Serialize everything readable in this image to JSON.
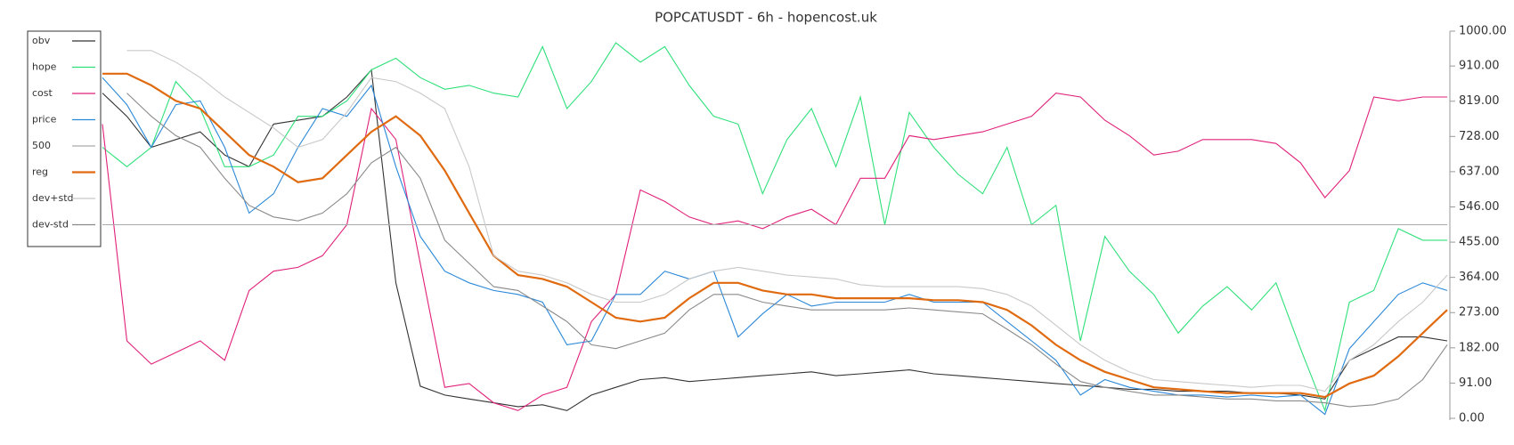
{
  "chart_data": {
    "type": "line",
    "title": "POPCATUSDT - 6h - hopencost.uk",
    "ylim": [
      0,
      1000
    ],
    "yticks": [
      {
        "value": 0,
        "label": "0.00"
      },
      {
        "value": 91,
        "label": "91.00"
      },
      {
        "value": 182,
        "label": "182.00"
      },
      {
        "value": 273,
        "label": "273.00"
      },
      {
        "value": 364,
        "label": "364.00"
      },
      {
        "value": 455,
        "label": "455.00"
      },
      {
        "value": 546,
        "label": "546.00"
      },
      {
        "value": 637,
        "label": "637.00"
      },
      {
        "value": 728,
        "label": "728.00"
      },
      {
        "value": 819,
        "label": "819.00"
      },
      {
        "value": 910,
        "label": "910.00"
      },
      {
        "value": 1000,
        "label": "1000.00"
      }
    ],
    "legend": "upper left",
    "series": [
      {
        "name": "obv",
        "color": "#333333",
        "values": [
          840,
          780,
          700,
          720,
          740,
          680,
          650,
          760,
          770,
          780,
          830,
          900,
          350,
          83,
          60,
          50,
          40,
          30,
          35,
          20,
          60,
          80,
          100,
          105,
          95,
          100,
          105,
          110,
          115,
          120,
          110,
          115,
          120,
          125,
          115,
          110,
          105,
          100,
          95,
          90,
          85,
          80,
          75,
          75,
          70,
          70,
          70,
          65,
          65,
          60,
          50,
          150,
          180,
          210,
          210,
          200
        ]
      },
      {
        "name": "hope",
        "color": "#2ee07a",
        "values": [
          700,
          650,
          700,
          870,
          800,
          650,
          650,
          680,
          780,
          780,
          820,
          900,
          930,
          880,
          850,
          860,
          840,
          830,
          960,
          800,
          870,
          970,
          920,
          960,
          860,
          780,
          760,
          580,
          720,
          800,
          650,
          830,
          500,
          790,
          700,
          630,
          580,
          700,
          500,
          550,
          200,
          470,
          380,
          320,
          220,
          290,
          340,
          280,
          350,
          180,
          20,
          300,
          330,
          490,
          460,
          460
        ]
      },
      {
        "name": "cost",
        "color": "#e0207a",
        "values": [
          760,
          200,
          140,
          170,
          200,
          150,
          330,
          380,
          390,
          420,
          500,
          800,
          720,
          400,
          80,
          90,
          40,
          20,
          60,
          80,
          250,
          320,
          590,
          560,
          520,
          500,
          510,
          490,
          520,
          540,
          500,
          620,
          620,
          730,
          720,
          730,
          740,
          760,
          780,
          840,
          830,
          770,
          730,
          680,
          690,
          720,
          720,
          720,
          710,
          660,
          570,
          640,
          830,
          820,
          830,
          830
        ]
      },
      {
        "name": "price",
        "color": "#2a88d8",
        "values": [
          880,
          810,
          700,
          810,
          820,
          700,
          530,
          580,
          700,
          800,
          780,
          860,
          650,
          470,
          380,
          350,
          330,
          320,
          300,
          190,
          200,
          320,
          320,
          380,
          360,
          380,
          210,
          270,
          320,
          290,
          300,
          300,
          300,
          320,
          300,
          300,
          300,
          250,
          200,
          150,
          60,
          100,
          80,
          70,
          60,
          60,
          55,
          60,
          55,
          60,
          10,
          180,
          250,
          320,
          350,
          330
        ]
      },
      {
        "name": "500",
        "color": "#aaaaaa",
        "values": [
          500,
          500,
          500,
          500,
          500,
          500,
          500,
          500,
          500,
          500,
          500,
          500,
          500,
          500,
          500,
          500,
          500,
          500,
          500,
          500,
          500,
          500,
          500,
          500,
          500,
          500,
          500,
          500,
          500,
          500,
          500,
          500,
          500,
          500,
          500,
          500,
          500,
          500,
          500,
          500,
          500,
          500,
          500,
          500,
          500,
          500,
          500,
          500,
          500,
          500,
          500,
          500,
          500,
          500,
          500,
          500
        ]
      },
      {
        "name": "reg",
        "color": "#e06a10",
        "values": [
          890,
          890,
          860,
          820,
          800,
          740,
          680,
          650,
          610,
          620,
          680,
          740,
          780,
          730,
          640,
          530,
          420,
          370,
          360,
          340,
          300,
          260,
          250,
          260,
          310,
          350,
          350,
          330,
          320,
          320,
          310,
          310,
          310,
          310,
          305,
          305,
          300,
          280,
          240,
          190,
          150,
          120,
          100,
          80,
          75,
          70,
          65,
          65,
          65,
          65,
          55,
          90,
          110,
          160,
          220,
          280
        ]
      },
      {
        "name": "dev+std",
        "color": "#c8c8c8",
        "values": [
          null,
          950,
          950,
          920,
          880,
          830,
          790,
          750,
          700,
          720,
          790,
          880,
          870,
          840,
          800,
          650,
          420,
          380,
          370,
          350,
          320,
          300,
          300,
          320,
          360,
          380,
          390,
          380,
          370,
          365,
          360,
          345,
          340,
          340,
          340,
          340,
          335,
          320,
          290,
          240,
          190,
          150,
          120,
          100,
          95,
          90,
          85,
          80,
          85,
          85,
          70,
          150,
          190,
          250,
          300,
          370
        ]
      },
      {
        "name": "dev-std",
        "color": "#8a8a8a",
        "values": [
          null,
          840,
          780,
          730,
          700,
          620,
          550,
          520,
          510,
          530,
          580,
          660,
          700,
          620,
          460,
          400,
          340,
          330,
          290,
          250,
          190,
          180,
          200,
          220,
          280,
          320,
          320,
          300,
          290,
          280,
          280,
          280,
          280,
          285,
          280,
          275,
          270,
          230,
          190,
          140,
          95,
          80,
          70,
          60,
          60,
          55,
          50,
          50,
          45,
          45,
          40,
          30,
          35,
          50,
          100,
          190
        ]
      }
    ]
  }
}
